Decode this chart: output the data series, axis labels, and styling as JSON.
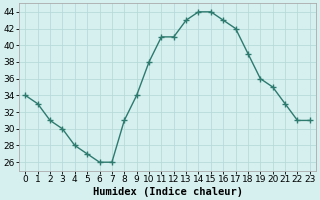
{
  "x": [
    0,
    1,
    2,
    3,
    4,
    5,
    6,
    7,
    8,
    9,
    10,
    11,
    12,
    13,
    14,
    15,
    16,
    17,
    18,
    19,
    20,
    21,
    22,
    23
  ],
  "y": [
    34,
    33,
    31,
    30,
    28,
    27,
    26,
    26,
    31,
    34,
    38,
    41,
    41,
    43,
    44,
    44,
    43,
    42,
    39,
    36,
    35,
    33,
    31,
    31
  ],
  "line_color": "#2d7a6e",
  "marker": "+",
  "bg_color": "#d6f0ef",
  "grid_color": "#b8dbd9",
  "xlabel": "Humidex (Indice chaleur)",
  "xlim": [
    -0.5,
    23.5
  ],
  "ylim": [
    25,
    45
  ],
  "yticks": [
    26,
    28,
    30,
    32,
    34,
    36,
    38,
    40,
    42,
    44
  ],
  "xticks": [
    0,
    1,
    2,
    3,
    4,
    5,
    6,
    7,
    8,
    9,
    10,
    11,
    12,
    13,
    14,
    15,
    16,
    17,
    18,
    19,
    20,
    21,
    22,
    23
  ],
  "tick_fontsize": 6.5,
  "xlabel_fontsize": 7.5,
  "linewidth": 1.0,
  "markersize": 4,
  "markeredgewidth": 1.0
}
